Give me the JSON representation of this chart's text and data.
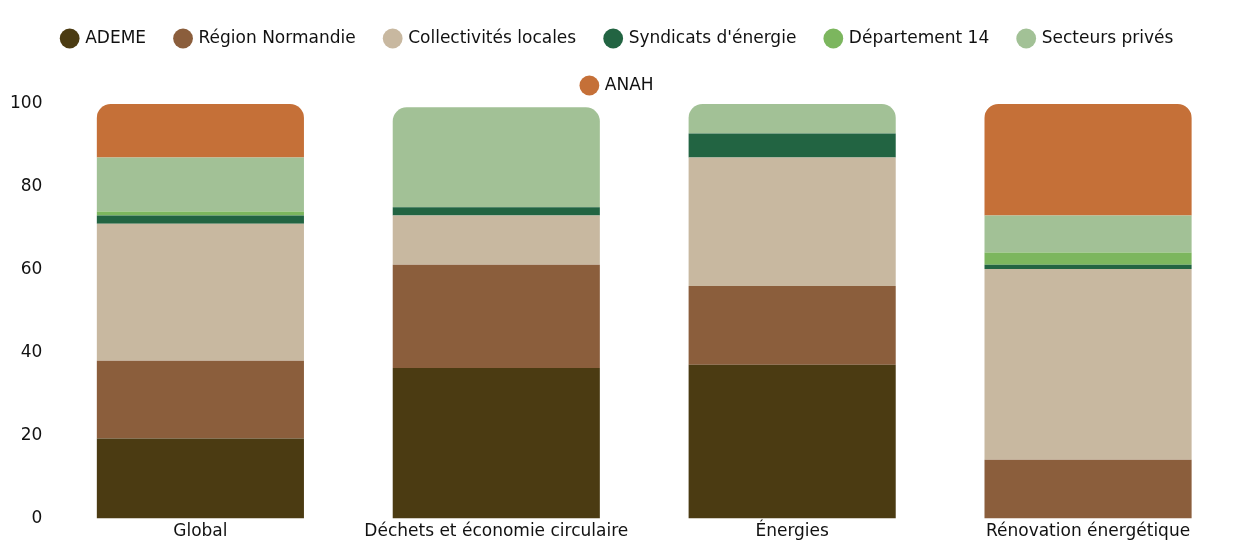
{
  "chart_data": {
    "type": "bar",
    "stacked": true,
    "categories": [
      "Global",
      "Déchets et économie circulaire",
      "Énergies",
      "Rénovation énergétique"
    ],
    "series": [
      {
        "name": "ADEME",
        "color": "#4b3b12",
        "values": [
          19.3,
          36.3,
          37.1,
          0
        ]
      },
      {
        "name": "Région Normandie",
        "color": "#8b5e3c",
        "values": [
          18.8,
          24.9,
          19,
          14.2
        ]
      },
      {
        "name": "Collectivités locales",
        "color": "#c8b8a0",
        "values": [
          33,
          11.9,
          31,
          46
        ]
      },
      {
        "name": "Syndicats d'énergie",
        "color": "#226442",
        "values": [
          2,
          2,
          5.8,
          1
        ]
      },
      {
        "name": "Département 14",
        "color": "#7cb65e",
        "values": [
          1,
          0,
          0,
          3
        ]
      },
      {
        "name": "Secteurs privés",
        "color": "#a2c196",
        "values": [
          13,
          24.1,
          7.1,
          8.9
        ]
      },
      {
        "name": "ANAH",
        "color": "#c57038",
        "values": [
          12.9,
          0,
          0,
          26.9
        ]
      }
    ],
    "ylim": [
      0,
      100
    ],
    "yticks": [
      0,
      20,
      40,
      60,
      80,
      100
    ],
    "grid": false,
    "legend": "top"
  }
}
